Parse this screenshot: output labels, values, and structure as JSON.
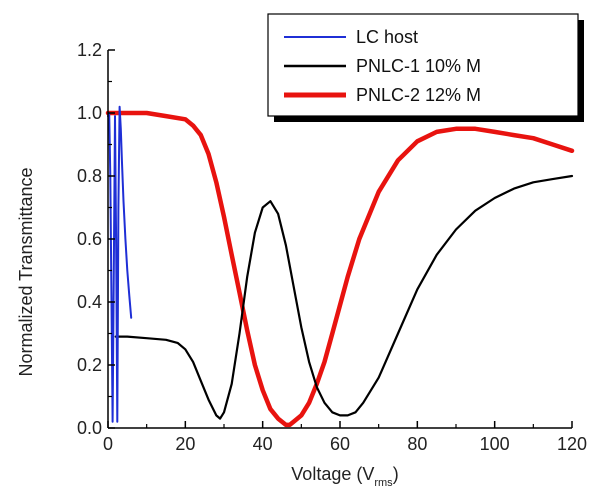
{
  "chart_data": {
    "type": "line",
    "xlabel": "Voltage (V",
    "xlabel_sub": "rms",
    "xlabel_close": ")",
    "ylabel": "Normalized Transmittance",
    "xlim": [
      0,
      120
    ],
    "ylim": [
      0.0,
      1.2
    ],
    "xticks": [
      0,
      20,
      40,
      60,
      80,
      100,
      120
    ],
    "yticks": [
      0.0,
      0.2,
      0.4,
      0.6,
      0.8,
      1.0,
      1.2
    ],
    "xtick_labels": [
      "0",
      "20",
      "40",
      "60",
      "80",
      "100",
      "120"
    ],
    "ytick_labels": [
      "0.0",
      "0.2",
      "0.4",
      "0.6",
      "0.8",
      "1.0",
      "1.2"
    ],
    "grid": false,
    "legend_position": "top-right",
    "series": [
      {
        "name": "LC host",
        "color": "#1f2fd6",
        "x": [
          0.0,
          0.3,
          0.6,
          0.9,
          1.2,
          1.5,
          1.8,
          2.1,
          2.4,
          2.7,
          3.0,
          3.3,
          3.6,
          4.0,
          4.5,
          5.0,
          5.5,
          6.0
        ],
        "y": [
          0.99,
          1.0,
          0.8,
          0.4,
          0.02,
          0.5,
          0.99,
          0.6,
          0.02,
          0.7,
          1.02,
          0.95,
          0.85,
          0.72,
          0.6,
          0.5,
          0.42,
          0.35
        ]
      },
      {
        "name": "PNLC-1 10% M",
        "color": "#000000",
        "x": [
          2,
          5,
          10,
          15,
          18,
          20,
          22,
          24,
          26,
          28,
          29,
          30,
          32,
          34,
          36,
          38,
          40,
          42,
          44,
          46,
          48,
          50,
          52,
          54,
          56,
          58,
          60,
          62,
          64,
          66,
          70,
          75,
          80,
          85,
          90,
          95,
          100,
          105,
          110,
          115,
          120
        ],
        "y": [
          0.29,
          0.29,
          0.285,
          0.28,
          0.27,
          0.25,
          0.21,
          0.15,
          0.09,
          0.04,
          0.03,
          0.05,
          0.14,
          0.3,
          0.48,
          0.62,
          0.7,
          0.72,
          0.68,
          0.58,
          0.45,
          0.32,
          0.21,
          0.13,
          0.08,
          0.05,
          0.04,
          0.04,
          0.05,
          0.08,
          0.16,
          0.3,
          0.44,
          0.55,
          0.63,
          0.69,
          0.73,
          0.76,
          0.78,
          0.79,
          0.8
        ]
      },
      {
        "name": "PNLC-2 12% M",
        "color": "#e8130f",
        "x": [
          0,
          5,
          10,
          15,
          20,
          22,
          24,
          26,
          28,
          30,
          32,
          34,
          36,
          38,
          40,
          42,
          44,
          46,
          47,
          48,
          50,
          52,
          54,
          56,
          58,
          60,
          62,
          65,
          70,
          75,
          80,
          85,
          90,
          95,
          100,
          105,
          110,
          115,
          120
        ],
        "y": [
          1.0,
          1.0,
          1.0,
          0.99,
          0.98,
          0.96,
          0.93,
          0.87,
          0.78,
          0.67,
          0.55,
          0.43,
          0.31,
          0.2,
          0.12,
          0.06,
          0.03,
          0.01,
          0.01,
          0.02,
          0.04,
          0.08,
          0.14,
          0.21,
          0.3,
          0.39,
          0.48,
          0.6,
          0.75,
          0.85,
          0.91,
          0.94,
          0.95,
          0.95,
          0.94,
          0.93,
          0.92,
          0.9,
          0.88
        ]
      }
    ]
  }
}
